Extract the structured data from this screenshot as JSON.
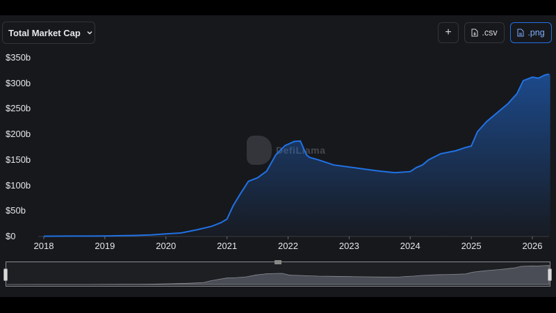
{
  "toolbar": {
    "metric_select_label": "Total Market Cap",
    "add_label": "+",
    "csv_label": ".csv",
    "png_label": ".png"
  },
  "watermark_text": "DefiLlama",
  "colors": {
    "line": "#2172e5",
    "background": "#17181c",
    "text": "#e6e7ea"
  },
  "chart_data": {
    "type": "area",
    "ylim": [
      0,
      350
    ],
    "yticks": [
      "$0",
      "$50b",
      "$100b",
      "$150b",
      "$200b",
      "$250b",
      "$300b",
      "$350b"
    ],
    "xticks": [
      "2018",
      "2019",
      "2020",
      "2021",
      "2022",
      "2023",
      "2024",
      "2025",
      "2026"
    ],
    "x": [
      2018.0,
      2018.5,
      2019.0,
      2019.5,
      2019.75,
      2020.0,
      2020.25,
      2020.5,
      2020.75,
      2020.9,
      2021.0,
      2021.1,
      2021.2,
      2021.35,
      2021.5,
      2021.65,
      2021.8,
      2021.95,
      2022.1,
      2022.2,
      2022.3,
      2022.35,
      2022.5,
      2022.75,
      2023.0,
      2023.25,
      2023.5,
      2023.75,
      2024.0,
      2024.1,
      2024.2,
      2024.3,
      2024.5,
      2024.75,
      2024.9,
      2025.0,
      2025.1,
      2025.25,
      2025.4,
      2025.5,
      2025.6,
      2025.75,
      2025.85,
      2026.0,
      2026.1,
      2026.2,
      2026.27
    ],
    "values": [
      0.5,
      0.8,
      1.0,
      2.0,
      3.0,
      5.0,
      7.0,
      13.0,
      20.0,
      27.0,
      34.0,
      60.0,
      80.0,
      108.0,
      115.0,
      128.0,
      160.0,
      178.0,
      186.0,
      187.0,
      160.0,
      155.0,
      150.0,
      140.0,
      136.0,
      132.0,
      128.0,
      125.0,
      127.0,
      135.0,
      140.0,
      150.0,
      162.0,
      168.0,
      174.0,
      177.0,
      205.0,
      225.0,
      240.0,
      250.0,
      260.0,
      280.0,
      305.0,
      312.0,
      310.0,
      316.0,
      318.0
    ]
  }
}
